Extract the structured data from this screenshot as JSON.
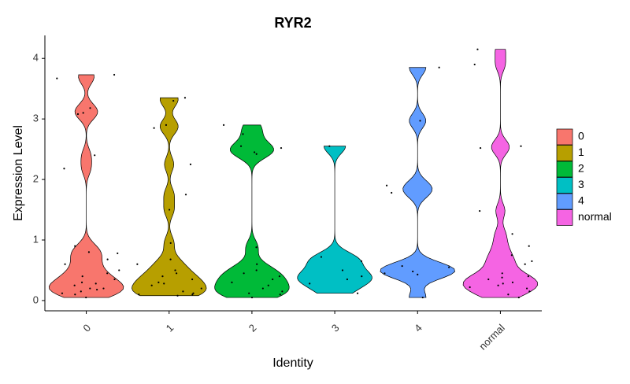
{
  "chart_data": {
    "type": "violin",
    "title": "RYR2",
    "x_label": "Identity",
    "y_label": "Expression Level",
    "categories": [
      "0",
      "1",
      "2",
      "3",
      "4",
      "normal"
    ],
    "series": [
      {
        "name": "0",
        "color": "#F8766D",
        "values": [
          3.73,
          3.67,
          3.18,
          3.08,
          3.1,
          2.4,
          2.18,
          0.9,
          0.8,
          0.78,
          0.68,
          0.6,
          0.5,
          0.45,
          0.4,
          0.35,
          0.3,
          0.28,
          0.25,
          0.2,
          0.2,
          0.18,
          0.15,
          0.12,
          0.1,
          0.05
        ]
      },
      {
        "name": "1",
        "color": "#B79F00",
        "values": [
          3.35,
          3.3,
          2.9,
          2.85,
          2.25,
          1.75,
          1.5,
          0.95,
          0.68,
          0.6,
          0.5,
          0.45,
          0.4,
          0.35,
          0.3,
          0.28,
          0.25,
          0.2,
          0.15,
          0.12,
          0.1,
          0.1,
          0.08
        ]
      },
      {
        "name": "2",
        "color": "#00BA38",
        "values": [
          2.9,
          2.75,
          2.55,
          2.52,
          2.45,
          2.42,
          0.88,
          0.6,
          0.5,
          0.45,
          0.4,
          0.35,
          0.3,
          0.25,
          0.2,
          0.15,
          0.12,
          0.1,
          0.05
        ]
      },
      {
        "name": "3",
        "color": "#00BFC4",
        "values": [
          2.55,
          0.72,
          0.65,
          0.5,
          0.4,
          0.35,
          0.28,
          0.12
        ]
      },
      {
        "name": "4",
        "color": "#619CFF",
        "values": [
          3.85,
          2.97,
          1.9,
          1.78,
          0.57,
          0.55,
          0.48,
          0.45,
          0.43,
          0.05
        ]
      },
      {
        "name": "normal",
        "color": "#F564E3",
        "values": [
          4.15,
          3.9,
          2.55,
          2.52,
          1.48,
          1.1,
          0.9,
          0.75,
          0.65,
          0.6,
          0.45,
          0.4,
          0.38,
          0.35,
          0.3,
          0.28,
          0.25,
          0.22,
          0.2,
          0.15,
          0.1,
          0.05
        ]
      }
    ],
    "ylim": [
      -0.17,
      4.38
    ],
    "yticks": [
      0,
      1,
      2,
      3,
      4
    ],
    "legend": "right"
  }
}
